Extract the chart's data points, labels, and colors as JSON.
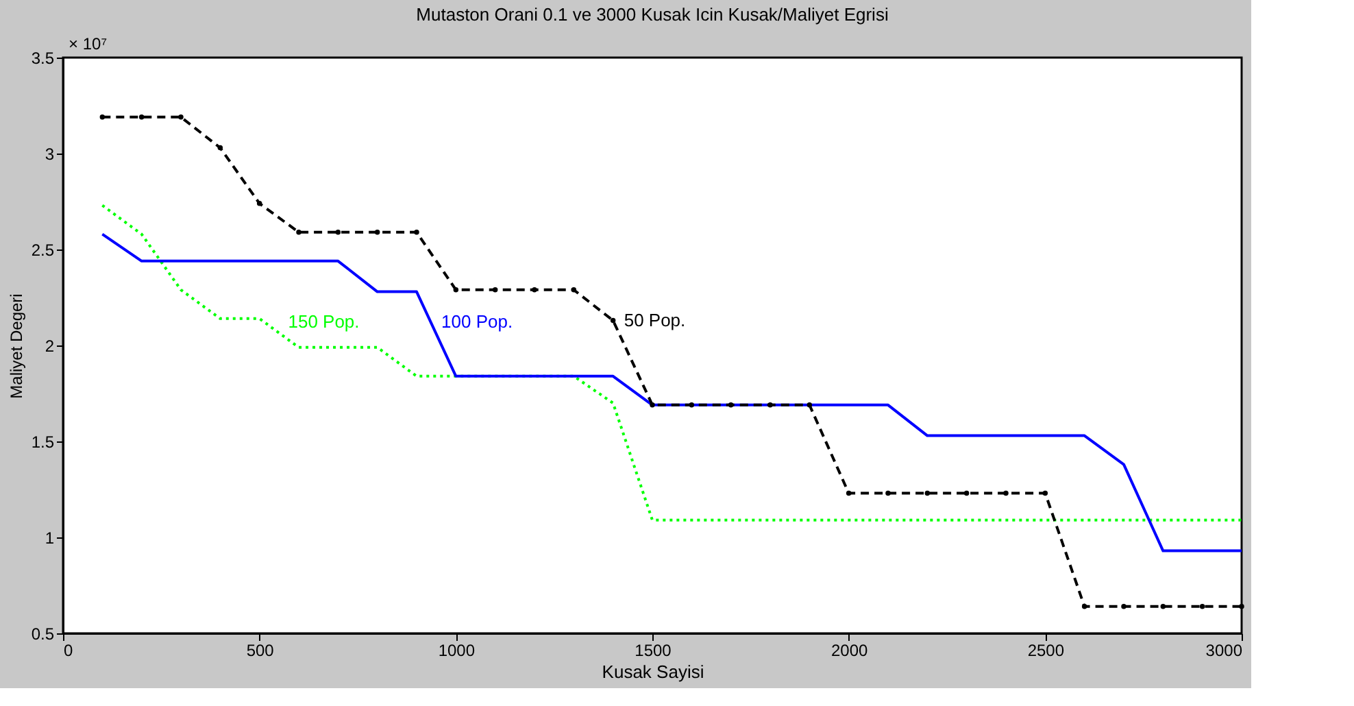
{
  "chart_data": {
    "type": "line",
    "title": "Mutaston Orani 0.1 ve 3000 Kusak Icin Kusak/Maliyet Egrisi",
    "xlabel": "Kusak Sayisi",
    "ylabel": "Maliyet Degeri",
    "x": [
      100,
      200,
      300,
      400,
      500,
      600,
      700,
      800,
      900,
      1000,
      1100,
      1200,
      1300,
      1400,
      1500,
      1600,
      1700,
      1800,
      1900,
      2000,
      2100,
      2200,
      2300,
      2400,
      2500,
      2600,
      2700,
      2800,
      2900,
      3000
    ],
    "series": [
      {
        "color": "#000000",
        "line_style": "dashed",
        "marker": "circle",
        "values": [
          3.19,
          3.19,
          3.19,
          3.03,
          2.74,
          2.59,
          2.59,
          2.59,
          2.59,
          2.29,
          2.29,
          2.29,
          2.29,
          2.13,
          1.69,
          1.69,
          1.69,
          1.69,
          1.69,
          1.23,
          1.23,
          1.23,
          1.23,
          1.23,
          1.23,
          0.64,
          0.64,
          0.64,
          0.64,
          0.64
        ]
      },
      {
        "color": "#0000ff",
        "line_style": "solid",
        "marker": "none",
        "values": [
          2.58,
          2.44,
          2.44,
          2.44,
          2.44,
          2.44,
          2.44,
          2.28,
          2.28,
          1.84,
          1.84,
          1.84,
          1.84,
          1.84,
          1.69,
          1.69,
          1.69,
          1.69,
          1.69,
          1.69,
          1.69,
          1.53,
          1.53,
          1.53,
          1.53,
          1.53,
          1.38,
          0.93,
          0.93,
          0.93
        ]
      },
      {
        "color": "#00ff00",
        "line_style": "dotted",
        "marker": "none",
        "values": [
          2.73,
          2.58,
          2.29,
          2.14,
          2.14,
          1.99,
          1.99,
          1.99,
          1.84,
          1.84,
          1.84,
          1.84,
          1.84,
          1.7,
          1.09,
          1.09,
          1.09,
          1.09,
          1.09,
          1.09,
          1.09,
          1.09,
          1.09,
          1.09,
          1.09,
          1.09,
          1.09,
          1.09,
          1.09,
          1.09
        ]
      }
    ],
    "annotations": [
      "× 10⁷",
      {
        "text": "50 Pop.",
        "x": 1400,
        "y": 2.13
      },
      {
        "text": "100 Pop.",
        "x": 935,
        "y": 2.12
      },
      {
        "text": "150 Pop.",
        "x": 545,
        "y": 2.12
      }
    ],
    "xlim": [
      0,
      3000
    ],
    "xticks": [
      0,
      500,
      1000,
      1500,
      2000,
      2500,
      3000
    ],
    "ylim": [
      0.5,
      3.5
    ],
    "yticks": [
      0.5,
      1,
      1.5,
      2,
      2.5,
      3,
      3.5
    ],
    "grid": false
  }
}
